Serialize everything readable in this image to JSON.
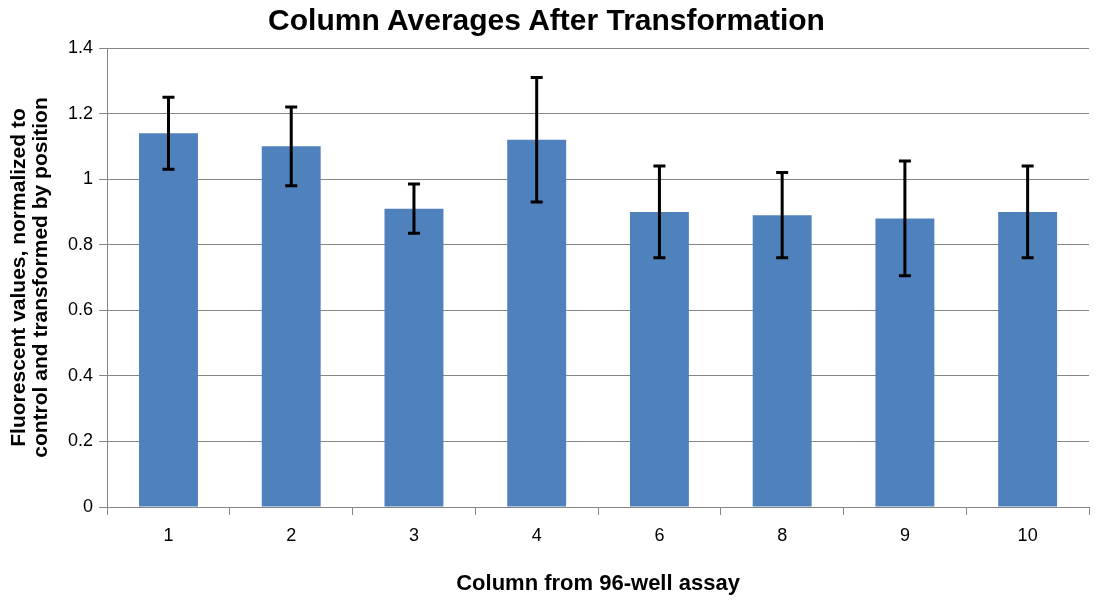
{
  "chart_data": {
    "type": "bar",
    "title": "Column Averages After Transformation",
    "xlabel": "Column from 96-well assay",
    "ylabel": "Fluorescent values, normalized to control and transformed by position",
    "categories": [
      "1",
      "2",
      "3",
      "4",
      "6",
      "8",
      "9",
      "10"
    ],
    "values": [
      1.14,
      1.1,
      0.91,
      1.12,
      0.9,
      0.89,
      0.88,
      0.9
    ],
    "errors": [
      0.11,
      0.12,
      0.075,
      0.19,
      0.14,
      0.13,
      0.175,
      0.14
    ],
    "color": "#4f81bd",
    "ylim": [
      0,
      1.4
    ],
    "yticks": [
      0,
      0.2,
      0.4,
      0.6,
      0.8,
      1,
      1.2,
      1.4
    ],
    "grid": "y"
  }
}
